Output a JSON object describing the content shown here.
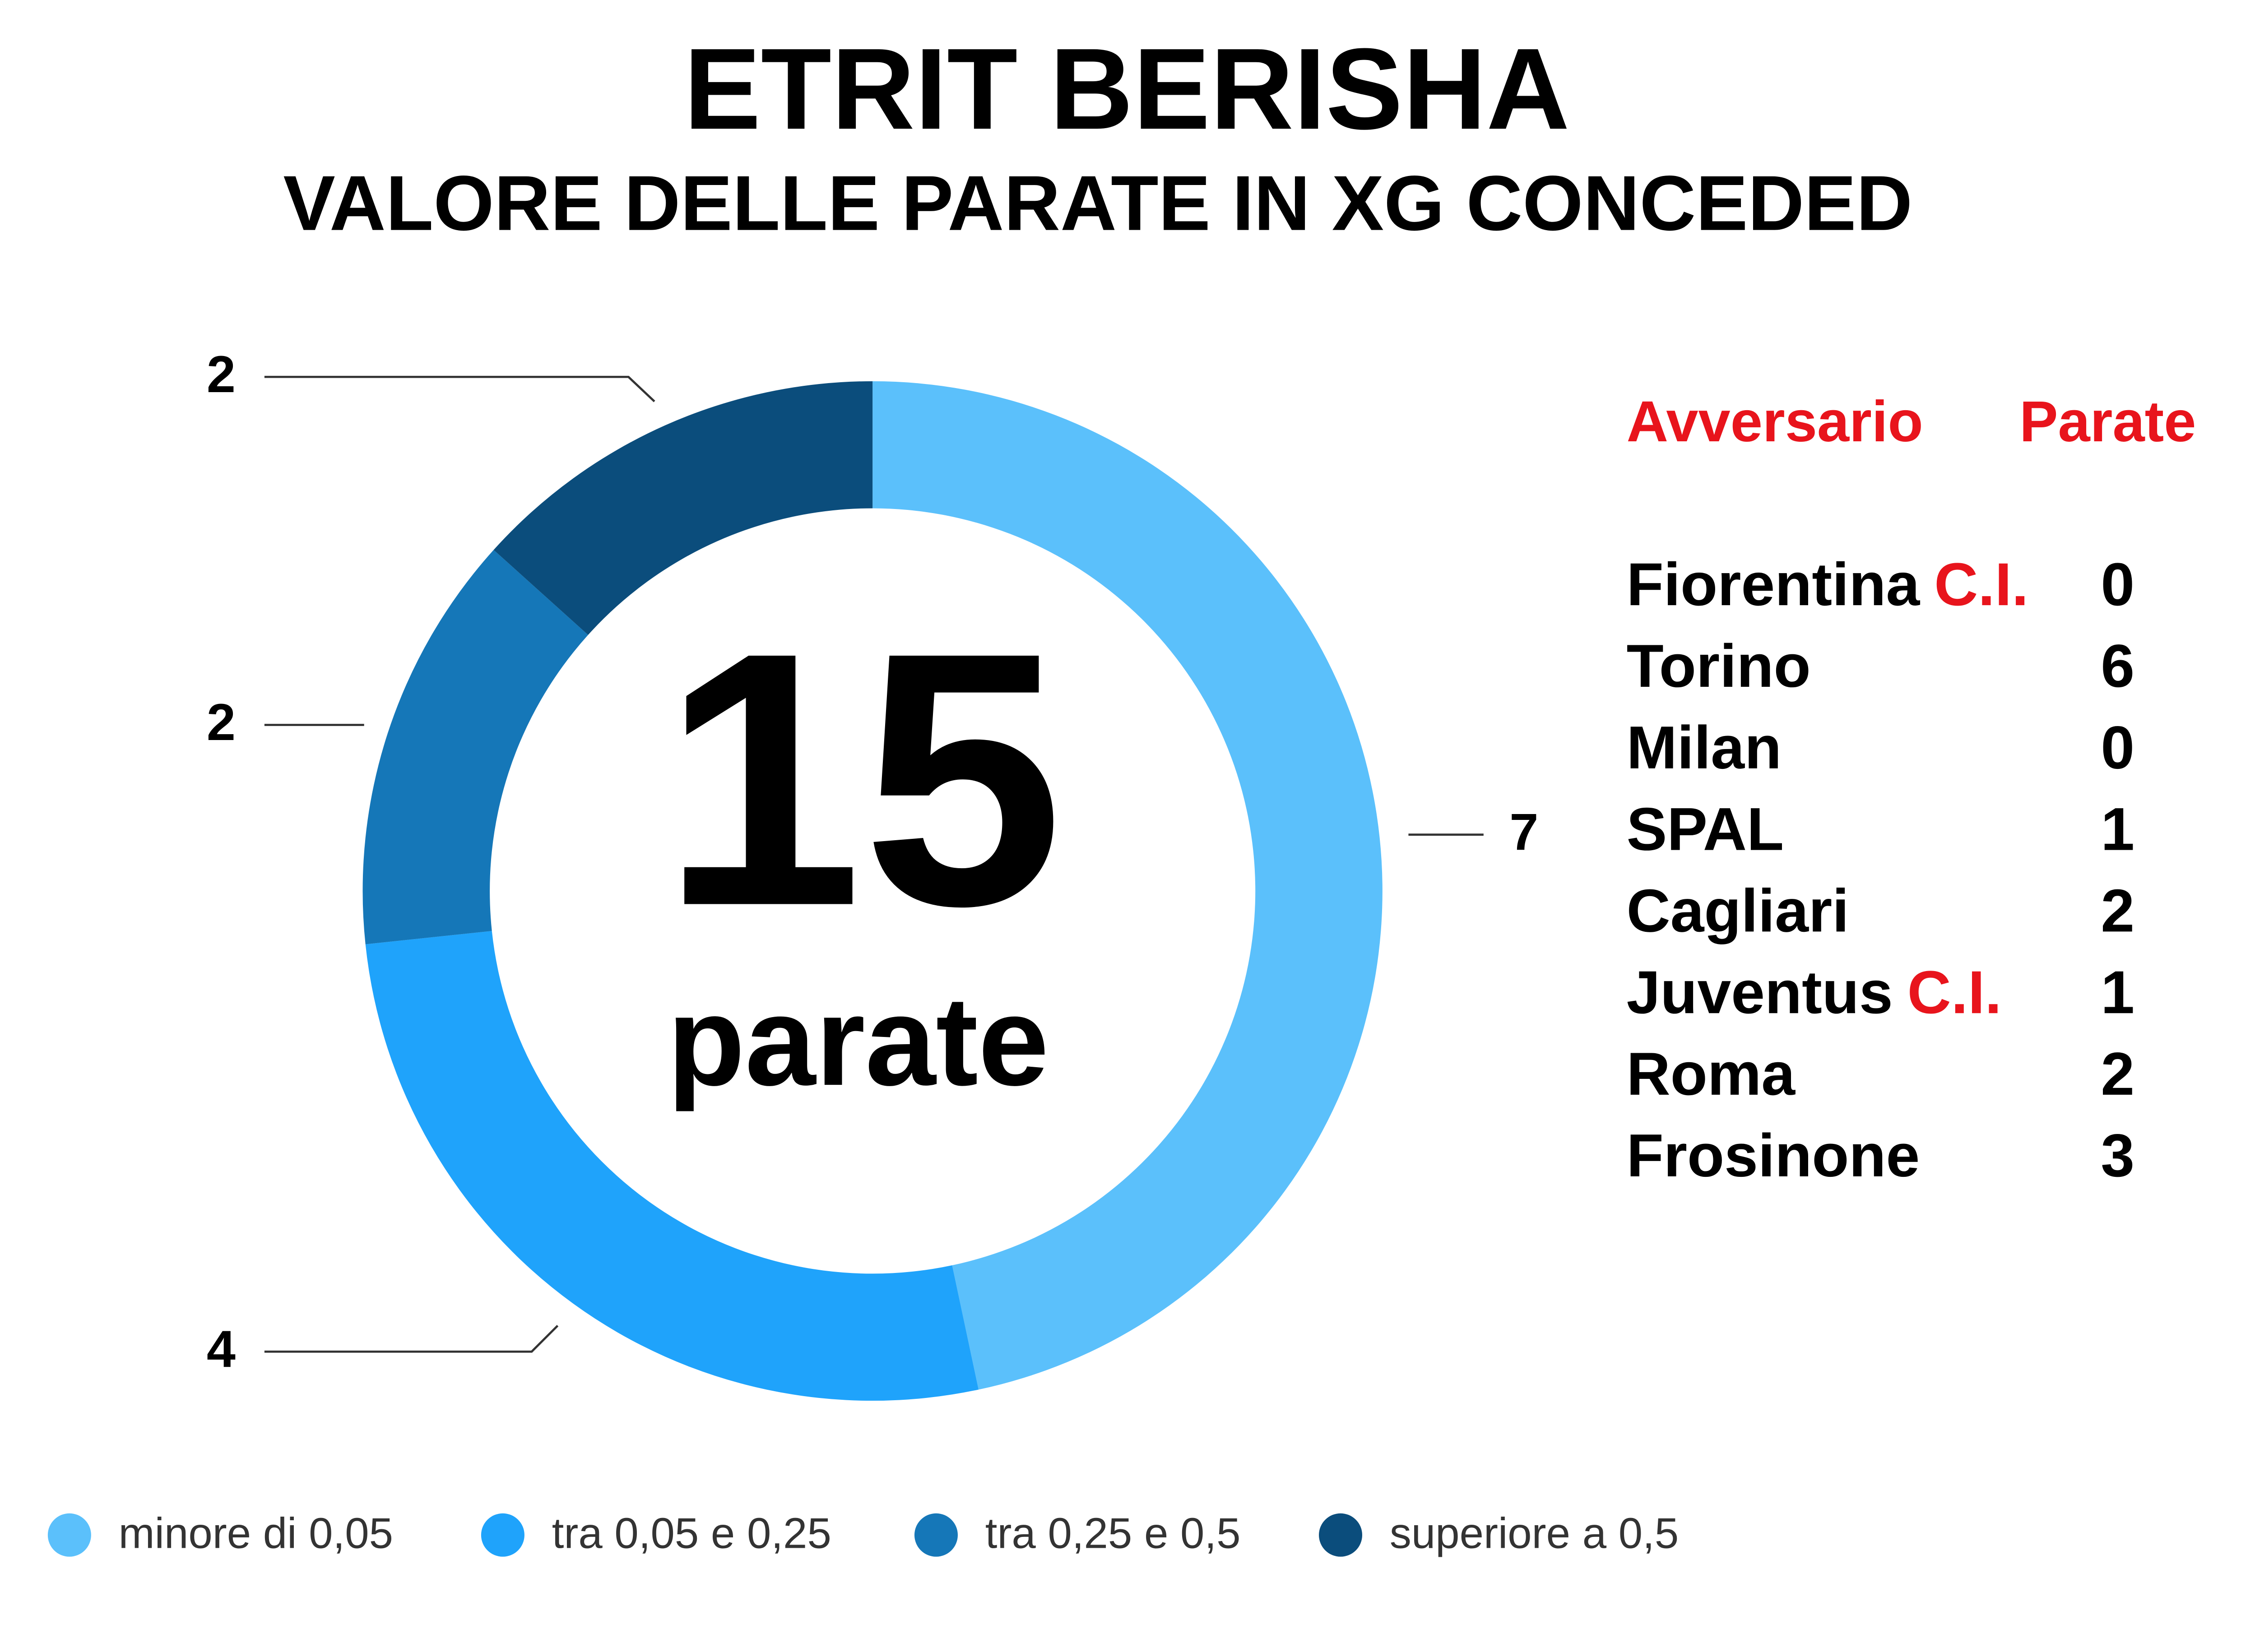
{
  "chart_data": {
    "type": "donut",
    "title": "ETRIT BERISHA",
    "subtitle": "VALORE DELLE PARATE IN XG CONCEDED",
    "categories": [
      "minore di 0,05",
      "tra 0,05 e 0,25",
      "tra 0,25 e 0,5",
      "superiore a 0,5"
    ],
    "values": [
      7,
      4,
      2,
      2
    ],
    "colors": [
      "#5bc0fb",
      "#1fa3fb",
      "#1577b8",
      "#0b4d7c"
    ],
    "center_value": 15,
    "center_label": "parate",
    "legend": "bottom"
  },
  "table": {
    "header": [
      "Avversario",
      "Parate"
    ],
    "rows": [
      {
        "team": "Fiorentina",
        "note": "C.I.",
        "saves": 0
      },
      {
        "team": "Torino",
        "saves": 6
      },
      {
        "team": "Milan",
        "saves": 0
      },
      {
        "team": "SPAL",
        "saves": 1
      },
      {
        "team": "Cagliari",
        "saves": 2
      },
      {
        "team": "Juventus",
        "note": "C.I.",
        "saves": 1
      },
      {
        "team": "Roma",
        "saves": 2
      },
      {
        "team": "Frosinone",
        "saves": 3
      }
    ]
  }
}
